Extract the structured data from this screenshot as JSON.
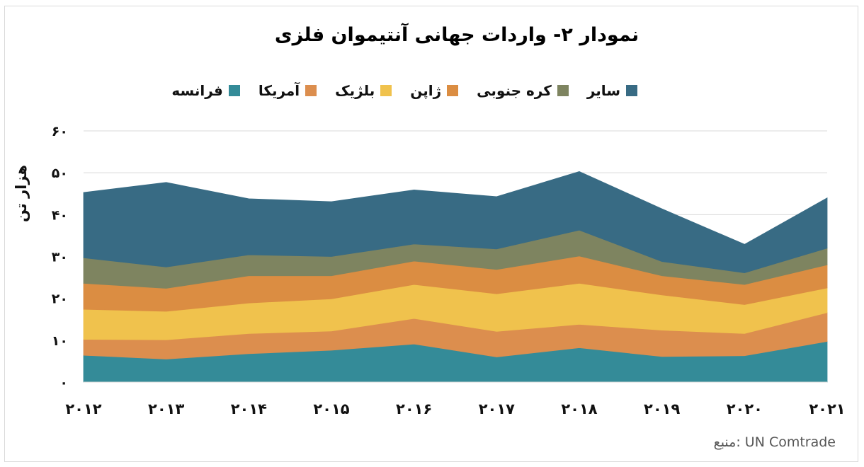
{
  "chart_data": {
    "type": "area",
    "stacked": true,
    "title": "نمودار ۲- واردات جهانی آنتیموان فلزی",
    "ylabel": "هزار تن",
    "xlabel": "",
    "ylim": [
      0,
      60
    ],
    "y_ticks": [
      0,
      10,
      20,
      30,
      40,
      50,
      60
    ],
    "y_tick_labels": [
      "۰",
      "۱۰",
      "۲۰",
      "۳۰",
      "۴۰",
      "۵۰",
      "۶۰"
    ],
    "x": [
      "2012",
      "2013",
      "2014",
      "2015",
      "2016",
      "2017",
      "2018",
      "2019",
      "2020",
      "2021"
    ],
    "x_tick_labels": [
      "۲۰۱۲",
      "۲۰۱۳",
      "۲۰۱۴",
      "۲۰۱۵",
      "۲۰۱۶",
      "۲۰۱۷",
      "۲۰۱۸",
      "۲۰۱۹",
      "۲۰۲۰",
      "۲۰۲۱"
    ],
    "grid": true,
    "legend_position": "top",
    "series": [
      {
        "name": "فرانسه",
        "color": "#348b98",
        "values": [
          6.4,
          5.5,
          6.8,
          7.6,
          9.1,
          6.0,
          8.2,
          6.1,
          6.3,
          9.7
        ]
      },
      {
        "name": "آمریکا",
        "color": "#dc8e4e",
        "values": [
          3.8,
          4.6,
          4.8,
          4.6,
          6.1,
          6.1,
          5.6,
          6.3,
          5.3,
          6.9
        ]
      },
      {
        "name": "بلژیک",
        "color": "#f0c24d",
        "values": [
          7.2,
          6.8,
          7.3,
          7.7,
          8.1,
          9.0,
          9.8,
          8.4,
          6.9,
          5.9
        ]
      },
      {
        "name": "ژاپن",
        "color": "#db8d42",
        "values": [
          6.2,
          5.5,
          6.5,
          5.5,
          5.6,
          5.8,
          6.5,
          4.6,
          4.8,
          5.5
        ]
      },
      {
        "name": "کره جنوبی",
        "color": "#7e8460",
        "values": [
          6.1,
          5.1,
          5.0,
          4.6,
          4.1,
          4.9,
          6.2,
          3.4,
          2.8,
          4.0
        ]
      },
      {
        "name": "سایر",
        "color": "#386b84",
        "values": [
          15.6,
          20.2,
          13.4,
          13.1,
          12.9,
          12.5,
          14.0,
          12.6,
          6.8,
          12.0
        ]
      }
    ]
  },
  "source_label": "منبع: UN Comtrade"
}
